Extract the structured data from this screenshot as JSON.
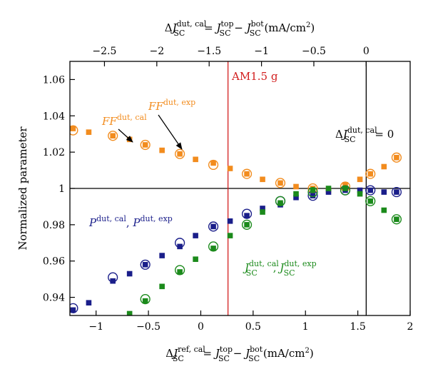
{
  "chart_data": {
    "type": "scatter",
    "x_axis_bottom": {
      "label": {
        "delta": "Δ",
        "j": "J",
        "sub": "SC",
        "sup": "ref, cal",
        "eq": " = ",
        "j2": "J",
        "sub2": "SC",
        "sup2": "top",
        "minus": " − ",
        "j3": "J",
        "sub3": "SC",
        "sup3": "bot",
        "unit": " (mA/cm",
        "unit_sup": "2",
        "unit_end": ")"
      },
      "range": [
        -1.25,
        2.0
      ],
      "ticks": [
        -1,
        -0.5,
        0,
        0.5,
        1,
        1.5,
        2
      ],
      "tick_labels": [
        "−1",
        "−0.5",
        "0",
        "0.5",
        "1",
        "1.5",
        "2"
      ]
    },
    "x_axis_top": {
      "label": {
        "delta": "Δ",
        "j": "J",
        "sub": "SC",
        "sup": "dut, cal",
        "eq": " = ",
        "j2": "J",
        "sub2": "SC",
        "sup2": "top",
        "minus": " − ",
        "j3": "J",
        "sub3": "SC",
        "sup3": "bot",
        "unit": " (mA/cm",
        "unit_sup": "2",
        "unit_end": ")"
      },
      "offset": 1.58,
      "ticks": [
        -2.5,
        -2,
        -1.5,
        -1,
        -0.5,
        0
      ],
      "tick_labels": [
        "−2.5",
        "−2",
        "−1.5",
        "−1",
        "−0.5",
        "0"
      ]
    },
    "y_axis": {
      "label": "Normalized parameter",
      "range": [
        0.93,
        1.07
      ],
      "ticks": [
        0.94,
        0.96,
        0.98,
        1.0,
        1.02,
        1.04,
        1.06
      ],
      "tick_labels": [
        "0.94",
        "0.96",
        "0.98",
        "1",
        "1.02",
        "1.04",
        "1.06"
      ]
    },
    "reference_lines": {
      "hline_y": 1.0,
      "vline_black_x": 1.58,
      "vline_red_x": 0.26
    },
    "series": [
      {
        "key": "ff_cal",
        "marker": "square",
        "color": "#f28c1e",
        "x": [
          -1.22,
          -1.07,
          -0.84,
          -0.68,
          -0.53,
          -0.37,
          -0.2,
          -0.05,
          0.12,
          0.28,
          0.44,
          0.59,
          0.76,
          0.91,
          1.07,
          1.22,
          1.38,
          1.52,
          1.62,
          1.75,
          1.87
        ],
        "y": [
          1.033,
          1.031,
          1.029,
          1.027,
          1.024,
          1.021,
          1.019,
          1.016,
          1.014,
          1.011,
          1.008,
          1.005,
          1.003,
          1.001,
          1.0,
          0.999,
          1.002,
          1.005,
          1.008,
          1.012,
          1.017
        ]
      },
      {
        "key": "ff_exp",
        "marker": "circle",
        "color": "#f28c1e",
        "x": [
          -1.22,
          -0.84,
          -0.53,
          -0.2,
          0.12,
          0.44,
          0.76,
          1.07,
          1.38,
          1.62,
          1.87
        ],
        "y": [
          1.032,
          1.029,
          1.024,
          1.019,
          1.013,
          1.008,
          1.003,
          1.0,
          1.001,
          1.008,
          1.017
        ]
      },
      {
        "key": "p_cal",
        "marker": "square",
        "color": "#1a1e8a",
        "x": [
          -1.22,
          -1.07,
          -0.84,
          -0.68,
          -0.53,
          -0.37,
          -0.2,
          -0.05,
          0.12,
          0.28,
          0.44,
          0.59,
          0.76,
          0.91,
          1.07,
          1.22,
          1.38,
          1.52,
          1.62,
          1.75,
          1.87
        ],
        "y": [
          0.933,
          0.937,
          0.949,
          0.953,
          0.958,
          0.963,
          0.968,
          0.974,
          0.979,
          0.982,
          0.985,
          0.989,
          0.991,
          0.995,
          0.996,
          0.998,
          0.999,
          0.999,
          0.999,
          0.998,
          0.998
        ]
      },
      {
        "key": "p_exp",
        "marker": "circle",
        "color": "#1a1e8a",
        "x": [
          -1.22,
          -0.84,
          -0.53,
          -0.2,
          0.12,
          0.44,
          0.76,
          1.07,
          1.38,
          1.62,
          1.87
        ],
        "y": [
          0.934,
          0.951,
          0.958,
          0.97,
          0.979,
          0.986,
          0.993,
          0.996,
          0.999,
          0.999,
          0.998
        ]
      },
      {
        "key": "jsc_cal",
        "marker": "square",
        "color": "#1b8a1b",
        "x": [
          -0.68,
          -0.53,
          -0.37,
          -0.2,
          -0.05,
          0.12,
          0.28,
          0.44,
          0.59,
          0.76,
          0.91,
          1.07,
          1.22,
          1.38,
          1.52,
          1.62,
          1.75,
          1.87
        ],
        "y": [
          0.931,
          0.938,
          0.946,
          0.954,
          0.961,
          0.967,
          0.974,
          0.98,
          0.987,
          0.992,
          0.997,
          0.999,
          1.0,
          1.0,
          0.997,
          0.993,
          0.988,
          0.983
        ]
      },
      {
        "key": "jsc_exp",
        "marker": "circle",
        "color": "#1b8a1b",
        "x": [
          -0.53,
          -0.2,
          0.12,
          0.44,
          0.76,
          1.07,
          1.38,
          1.62,
          1.87
        ],
        "y": [
          0.939,
          0.955,
          0.968,
          0.98,
          0.993,
          0.998,
          0.999,
          0.993,
          0.983
        ]
      }
    ],
    "annotations": {
      "am": "AM1.5 g",
      "ff_cal": {
        "base": "FF",
        "sup": "dut, cal"
      },
      "ff_exp": {
        "base": "FF",
        "sup": "dut, exp"
      },
      "p": {
        "base1": "P",
        "sup1": "dut, cal",
        "sep": ", ",
        "base2": "P",
        "sup2": "dut, exp"
      },
      "jsc": {
        "base1": "J",
        "sub1": "SC",
        "sup1": "dut, cal",
        "sep": ", ",
        "base2": "J",
        "sub2": "SC",
        "sup2": "dut, exp"
      },
      "zero": {
        "delta": "Δ",
        "base": "J",
        "sub": "SC",
        "sup": "dut, cal",
        "eq": " = 0"
      }
    }
  }
}
